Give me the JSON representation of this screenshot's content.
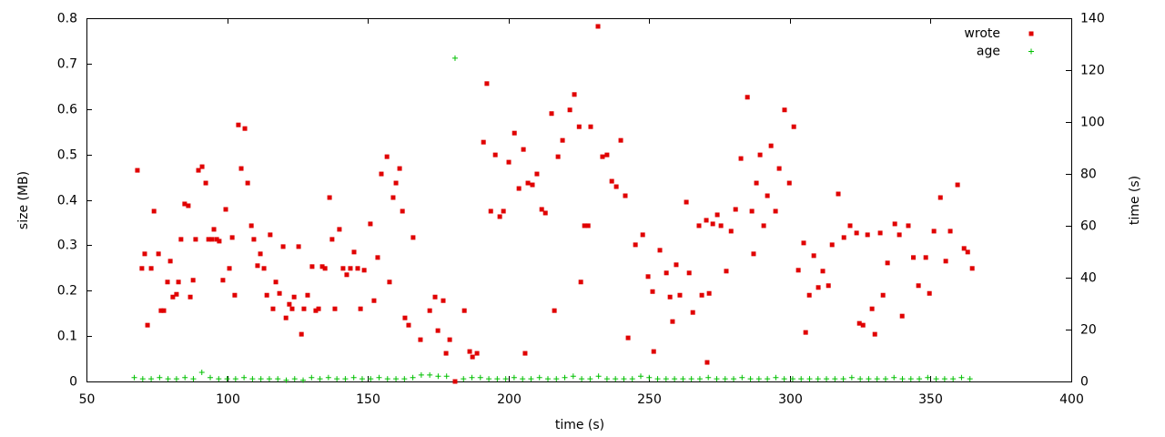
{
  "chart_data": {
    "type": "scatter",
    "xlabel": "time (s)",
    "ylabel": "size (MB)",
    "y2label": "time (s)",
    "xlim": [
      50,
      400
    ],
    "xticks": [
      50,
      100,
      150,
      200,
      250,
      300,
      350,
      400
    ],
    "ylim": [
      0,
      0.8
    ],
    "yticks": [
      0,
      0.1,
      0.2,
      0.3,
      0.4,
      0.5,
      0.6,
      0.7,
      0.8
    ],
    "y2lim": [
      0,
      140
    ],
    "y2ticks": [
      0,
      20,
      40,
      60,
      80,
      100,
      120,
      140
    ],
    "grid": false,
    "legend": "top-right",
    "series": [
      {
        "name": "wrote",
        "color": "#e00000",
        "marker": "square",
        "x": [
          68.1,
          69.7,
          70.7,
          71.7,
          73.0,
          74.0,
          75.6,
          76.5,
          77.5,
          78.8,
          79.8,
          80.7,
          82.0,
          82.7,
          83.6,
          84.9,
          86.2,
          86.9,
          87.9,
          88.8,
          89.8,
          91.1,
          92.4,
          93.4,
          94.6,
          95.3,
          96.3,
          97.2,
          98.5,
          99.5,
          100.8,
          101.8,
          102.7,
          104.0,
          105.0,
          106.3,
          107.3,
          108.6,
          109.5,
          110.8,
          111.8,
          113.1,
          114.1,
          115.3,
          116.3,
          117.3,
          118.6,
          119.9,
          120.9,
          122.1,
          123.1,
          123.8,
          125.4,
          126.4,
          127.3,
          128.6,
          130.2,
          131.5,
          132.5,
          133.8,
          134.8,
          136.4,
          137.3,
          138.3,
          139.9,
          141.2,
          142.5,
          143.8,
          145.1,
          146.4,
          147.4,
          148.7,
          150.9,
          152.2,
          153.5,
          154.8,
          156.8,
          157.7,
          159.0,
          160.0,
          161.3,
          162.3,
          163.2,
          164.5,
          166.1,
          168.7,
          172.0,
          173.9,
          174.9,
          176.8,
          177.8,
          179.1,
          181.0,
          184.3,
          186.2,
          187.2,
          188.8,
          191.1,
          192.3,
          193.7,
          195.3,
          196.9,
          198.2,
          200.1,
          202.1,
          203.7,
          205.3,
          205.9,
          206.9,
          208.5,
          210.1,
          211.8,
          213.1,
          215.3,
          216.3,
          217.6,
          219.2,
          221.8,
          223.4,
          225.1,
          225.7,
          227.0,
          228.3,
          229.2,
          231.8,
          233.4,
          235.0,
          236.7,
          238.3,
          239.9,
          241.5,
          242.5,
          245.1,
          247.7,
          249.6,
          251.2,
          251.6,
          253.8,
          256.1,
          257.4,
          258.3,
          259.6,
          260.9,
          263.2,
          264.2,
          265.5,
          267.7,
          268.7,
          270.3,
          270.6,
          271.3,
          272.6,
          274.2,
          275.5,
          277.4,
          279.1,
          280.7,
          282.6,
          284.9,
          286.5,
          287.1,
          288.1,
          289.4,
          290.7,
          292.0,
          293.3,
          294.9,
          296.2,
          298.1,
          299.8,
          301.4,
          303.0,
          304.9,
          305.6,
          306.9,
          308.5,
          310.1,
          311.7,
          313.7,
          315.0,
          317.2,
          319.2,
          321.4,
          323.7,
          324.7,
          326.0,
          327.6,
          329.2,
          330.2,
          332.1,
          333.1,
          334.7,
          337.3,
          338.9,
          339.9,
          342.1,
          343.9,
          345.7,
          348.3,
          349.6,
          351.2,
          353.5,
          355.4,
          357.0,
          359.6,
          361.9,
          363.2,
          364.8
        ],
        "values": [
          0.465,
          0.249,
          0.281,
          0.124,
          0.249,
          0.375,
          0.281,
          0.156,
          0.156,
          0.219,
          0.265,
          0.186,
          0.192,
          0.219,
          0.313,
          0.391,
          0.387,
          0.186,
          0.223,
          0.313,
          0.465,
          0.473,
          0.437,
          0.313,
          0.313,
          0.335,
          0.313,
          0.309,
          0.223,
          0.379,
          0.249,
          0.317,
          0.19,
          0.565,
          0.469,
          0.557,
          0.437,
          0.343,
          0.313,
          0.255,
          0.281,
          0.249,
          0.19,
          0.323,
          0.16,
          0.219,
          0.194,
          0.297,
          0.14,
          0.17,
          0.16,
          0.186,
          0.297,
          0.104,
          0.16,
          0.19,
          0.253,
          0.156,
          0.16,
          0.253,
          0.249,
          0.405,
          0.313,
          0.16,
          0.335,
          0.249,
          0.235,
          0.249,
          0.285,
          0.249,
          0.16,
          0.245,
          0.347,
          0.178,
          0.273,
          0.457,
          0.495,
          0.219,
          0.405,
          0.437,
          0.469,
          0.375,
          0.14,
          0.124,
          0.317,
          0.092,
          0.156,
          0.186,
          0.112,
          0.178,
          0.062,
          0.092,
          0,
          0.156,
          0.066,
          0.054,
          0.062,
          0.527,
          0.656,
          0.375,
          0.499,
          0.363,
          0.375,
          0.483,
          0.547,
          0.425,
          0.511,
          0.062,
          0.437,
          0.433,
          0.457,
          0.379,
          0.371,
          0.59,
          0.156,
          0.495,
          0.531,
          0.598,
          0.632,
          0.561,
          0.219,
          0.343,
          0.343,
          0.561,
          0.782,
          0.495,
          0.499,
          0.441,
          0.429,
          0.531,
          0.409,
          0.096,
          0.301,
          0.323,
          0.231,
          0.198,
          0.066,
          0.289,
          0.239,
          0.186,
          0.132,
          0.257,
          0.19,
          0.395,
          0.239,
          0.152,
          0.343,
          0.19,
          0.355,
          0.042,
          0.194,
          0.347,
          0.367,
          0.343,
          0.243,
          0.331,
          0.379,
          0.491,
          0.626,
          0.375,
          0.281,
          0.437,
          0.499,
          0.343,
          0.409,
          0.519,
          0.375,
          0.469,
          0.598,
          0.437,
          0.561,
          0.245,
          0.305,
          0.108,
          0.19,
          0.277,
          0.207,
          0.243,
          0.211,
          0.301,
          0.413,
          0.317,
          0.343,
          0.327,
          0.128,
          0.124,
          0.323,
          0.16,
          0.104,
          0.327,
          0.19,
          0.261,
          0.347,
          0.323,
          0.144,
          0.343,
          0.273,
          0.211,
          0.273,
          0.194,
          0.331,
          0.405,
          0.265,
          0.331,
          0.433,
          0.293,
          0.285,
          0.249
        ]
      },
      {
        "name": "age",
        "color": "#00c000",
        "marker": "plus",
        "axis": "y2",
        "x": [
          67,
          70,
          73,
          76,
          79,
          82,
          85,
          88,
          91,
          94,
          97,
          100,
          103,
          106,
          109,
          112,
          115,
          118,
          121,
          124,
          127,
          130,
          133,
          136,
          139,
          142,
          145,
          148,
          151,
          154,
          157,
          160,
          163,
          166,
          169,
          172,
          175,
          178,
          181,
          184,
          187,
          190,
          193,
          196,
          199,
          202,
          205,
          208,
          211,
          214,
          217,
          220,
          223,
          226,
          229,
          232,
          235,
          238,
          241,
          244,
          247,
          250,
          253,
          256,
          259,
          262,
          265,
          268,
          271,
          274,
          277,
          280,
          283,
          286,
          289,
          292,
          295,
          298,
          301,
          304,
          307,
          310,
          313,
          316,
          319,
          322,
          325,
          328,
          331,
          334,
          337,
          340,
          343,
          346,
          349,
          352,
          355,
          358,
          361,
          364
        ],
        "values": [
          1.5,
          1,
          1,
          1.5,
          1,
          1,
          1.5,
          1,
          3.5,
          1.5,
          1,
          1,
          1,
          1.5,
          1,
          1,
          1,
          1,
          0.5,
          1,
          0.5,
          1.5,
          1,
          1.5,
          1,
          1,
          1.5,
          1,
          1,
          1.5,
          1,
          1,
          1,
          1.5,
          2.5,
          2.5,
          2,
          2,
          124.6,
          1,
          1.5,
          1.5,
          1,
          1,
          1,
          1.5,
          1,
          1,
          1.5,
          1,
          1,
          1.5,
          2,
          1,
          1,
          2,
          1,
          1,
          1,
          1,
          2,
          1.5,
          1,
          1,
          1,
          1,
          1,
          1,
          1.5,
          1,
          1,
          1,
          1.5,
          1,
          1,
          1,
          1.5,
          1,
          1,
          1,
          1,
          1,
          1,
          1,
          1,
          1.5,
          1,
          1,
          1,
          1,
          1.5,
          1,
          1,
          1,
          1.5,
          1,
          1,
          1,
          1.5,
          1
        ]
      }
    ]
  }
}
